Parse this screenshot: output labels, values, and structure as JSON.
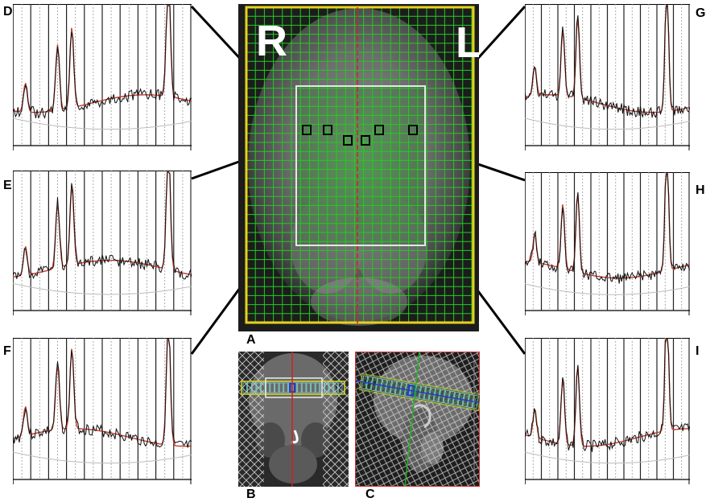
{
  "figure": {
    "panel_labels": {
      "A": "A",
      "B": "B",
      "C": "C",
      "D": "D",
      "E": "E",
      "F": "F",
      "G": "G",
      "H": "H",
      "I": "I"
    },
    "orientation": {
      "right": "R",
      "left": "L"
    },
    "colors": {
      "grid_green": "#22cc22",
      "fov_yellow": "#e8d21a",
      "midline_red": "#d42020",
      "voi_white": "#e6e6e6",
      "spectrum_black": "#111111",
      "spectrum_fit_red": "#c0392b",
      "scout_box_blue": "#1f3fd0",
      "scout_band_yellow": "#d8d820",
      "scout_line_green": "#22b022"
    }
  }
}
